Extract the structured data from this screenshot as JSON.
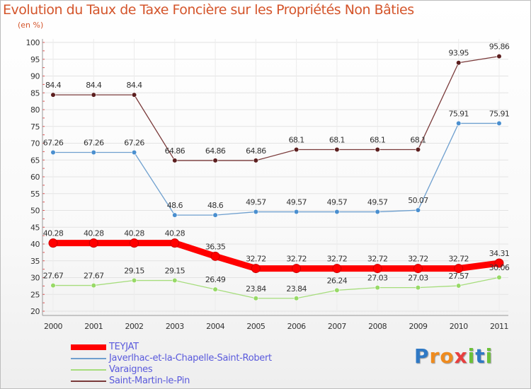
{
  "title": "Evolution du Taux de Taxe Foncière sur les Propriétés Non Bâties",
  "unit_note": "(en %)",
  "brand": {
    "text": "Proxiti",
    "letters": [
      "P",
      "r",
      "o",
      "x",
      "i",
      "t",
      "i"
    ],
    "colors": [
      "#2f79c5",
      "#ef8b1e",
      "#ef8b1e",
      "#e83e3e",
      "#6cc13a",
      "#2f79c5",
      "#6cc13a"
    ]
  },
  "chart_data": {
    "type": "line",
    "title": "Evolution du Taux de Taxe Foncière sur les Propriétés Non Bâties",
    "ylabel": "(en %)",
    "xlabel": "",
    "ylim": [
      20,
      100
    ],
    "yticks": [
      20,
      25,
      30,
      35,
      40,
      45,
      50,
      55,
      60,
      65,
      70,
      75,
      80,
      85,
      90,
      95,
      100
    ],
    "grid": true,
    "legend_position": "bottom-left",
    "categories": [
      "2000",
      "2001",
      "2002",
      "2003",
      "2004",
      "2005",
      "2006",
      "2007",
      "2008",
      "2009",
      "2010",
      "2011"
    ],
    "series": [
      {
        "name": "TEYJAT",
        "color": "#ff0000",
        "marker_color": "#ff0000",
        "thick": true,
        "values": [
          40.28,
          40.28,
          40.28,
          40.28,
          36.35,
          32.72,
          32.72,
          32.72,
          32.72,
          32.72,
          32.72,
          34.31
        ],
        "labels": [
          "40.28",
          "40.28",
          "40.28",
          "40.28",
          "36.35",
          "32.72",
          "32.72",
          "32.72",
          "32.72",
          "32.72",
          "32.72",
          "34.31"
        ]
      },
      {
        "name": "Javerlhac-et-la-Chapelle-Saint-Robert",
        "color": "#6fa0cf",
        "marker_color": "#4a8fcf",
        "thick": false,
        "values": [
          67.26,
          67.26,
          67.26,
          48.6,
          48.6,
          49.57,
          49.57,
          49.57,
          49.57,
          50.07,
          75.91,
          75.91
        ],
        "labels": [
          "67.26",
          "67.26",
          "67.26",
          "48.6",
          "48.6",
          "49.57",
          "49.57",
          "49.57",
          "49.57",
          "50.07",
          "75.91",
          "75.91"
        ]
      },
      {
        "name": "Varaignes",
        "color": "#a6dd7c",
        "marker_color": "#97d966",
        "thick": false,
        "values": [
          27.67,
          27.67,
          29.15,
          29.15,
          26.49,
          23.84,
          23.84,
          26.24,
          27.03,
          27.03,
          27.57,
          30.06
        ],
        "labels": [
          "27.67",
          "27.67",
          "29.15",
          "29.15",
          "26.49",
          "23.84",
          "23.84",
          "26.24",
          "27.03",
          "27.03",
          "27.57",
          "30.06"
        ]
      },
      {
        "name": "Saint-Martin-le-Pin",
        "color": "#7a3a3a",
        "marker_color": "#5c1f1f",
        "thick": false,
        "values": [
          84.4,
          84.4,
          84.4,
          64.86,
          64.86,
          64.86,
          68.1,
          68.1,
          68.1,
          68.1,
          93.95,
          95.86
        ],
        "labels": [
          "84.4",
          "84.4",
          "84.4",
          "64.86",
          "64.86",
          "64.86",
          "68.1",
          "68.1",
          "68.1",
          "68.1",
          "93.95",
          "95.86"
        ]
      }
    ]
  }
}
